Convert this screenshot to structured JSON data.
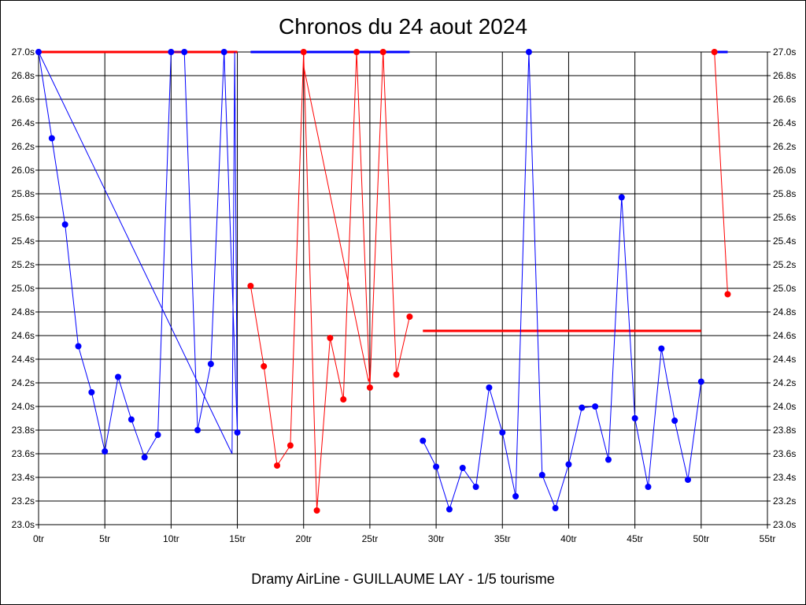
{
  "chart_data": {
    "type": "line",
    "title": "Chronos du 24 aout 2024",
    "footer": "Dramy AirLine - GUILLAUME LAY - 1/5 tourisme",
    "xlabel": "",
    "ylabel": "",
    "xlim": [
      0,
      55
    ],
    "ylim": [
      23.0,
      27.0
    ],
    "grid": true,
    "x_ticks": [
      0,
      5,
      10,
      15,
      20,
      25,
      30,
      35,
      40,
      45,
      50,
      55
    ],
    "x_tick_labels": [
      "0tr",
      "5tr",
      "10tr",
      "15tr",
      "20tr",
      "25tr",
      "30tr",
      "35tr",
      "40tr",
      "45tr",
      "50tr",
      "55tr"
    ],
    "y_ticks": [
      23.0,
      23.2,
      23.4,
      23.6,
      23.8,
      24.0,
      24.2,
      24.4,
      24.6,
      24.8,
      25.0,
      25.2,
      25.4,
      25.6,
      25.8,
      26.0,
      26.2,
      26.4,
      26.6,
      26.8,
      27.0
    ],
    "y_tick_labels": [
      "23.0s",
      "23.2s",
      "23.4s",
      "23.6s",
      "23.8s",
      "24.0s",
      "24.2s",
      "24.4s",
      "24.6s",
      "24.8s",
      "25.0s",
      "25.2s",
      "25.4s",
      "25.6s",
      "25.8s",
      "26.0s",
      "26.2s",
      "26.4s",
      "26.6s",
      "26.8s",
      "27.0s"
    ],
    "series_markers": [
      {
        "color": "#0000ff",
        "x": [
          0,
          1,
          2,
          3,
          4,
          5,
          6,
          7,
          8,
          9,
          10,
          11,
          12,
          13,
          14,
          15
        ],
        "y": [
          27.0,
          26.27,
          25.54,
          24.51,
          24.12,
          23.62,
          24.25,
          23.89,
          23.57,
          23.76,
          27.0,
          27.0,
          23.8,
          24.36,
          27.0,
          23.78
        ]
      },
      {
        "color": "#ff0000",
        "x": [
          16,
          17,
          18,
          19,
          20,
          21,
          22,
          23,
          24,
          25,
          26,
          27,
          28
        ],
        "y": [
          25.02,
          24.34,
          23.5,
          23.67,
          27.0,
          23.12,
          24.58,
          24.06,
          27.0,
          24.16,
          27.0,
          24.27,
          24.76
        ]
      },
      {
        "color": "#0000ff",
        "x": [
          29,
          30,
          31,
          32,
          33,
          34,
          35,
          36,
          37,
          38,
          39,
          40,
          41,
          42,
          43,
          44,
          45,
          46,
          47,
          48,
          49,
          50
        ],
        "y": [
          23.71,
          23.49,
          23.13,
          23.48,
          23.32,
          24.16,
          23.78,
          23.24,
          27.0,
          23.42,
          23.14,
          23.51,
          23.99,
          24.0,
          23.55,
          25.77,
          23.9,
          23.32,
          24.49,
          23.88,
          23.38,
          24.21
        ]
      },
      {
        "color": "#ff0000",
        "x": [
          51,
          52
        ],
        "y": [
          27.0,
          24.95
        ]
      }
    ],
    "series_lines": [
      {
        "color": "#0000ff",
        "x": [
          0,
          14.6,
          14.8,
          15
        ],
        "y": [
          27.0,
          23.6,
          27.0,
          23.78
        ]
      },
      {
        "color": "#ff0000",
        "x": [
          20,
          20.02,
          24.9,
          25.0
        ],
        "y": [
          27.0,
          26.87,
          24.21,
          24.26
        ]
      }
    ],
    "average_lines": [
      {
        "color": "#ff0000",
        "x": [
          0,
          15
        ],
        "y": 27.0
      },
      {
        "color": "#0000ff",
        "x": [
          16,
          28
        ],
        "y": 27.0
      },
      {
        "color": "#ff0000",
        "x": [
          29,
          50
        ],
        "y": 24.64
      },
      {
        "color": "#0000ff",
        "x": [
          51,
          52
        ],
        "y": 27.0
      }
    ]
  }
}
